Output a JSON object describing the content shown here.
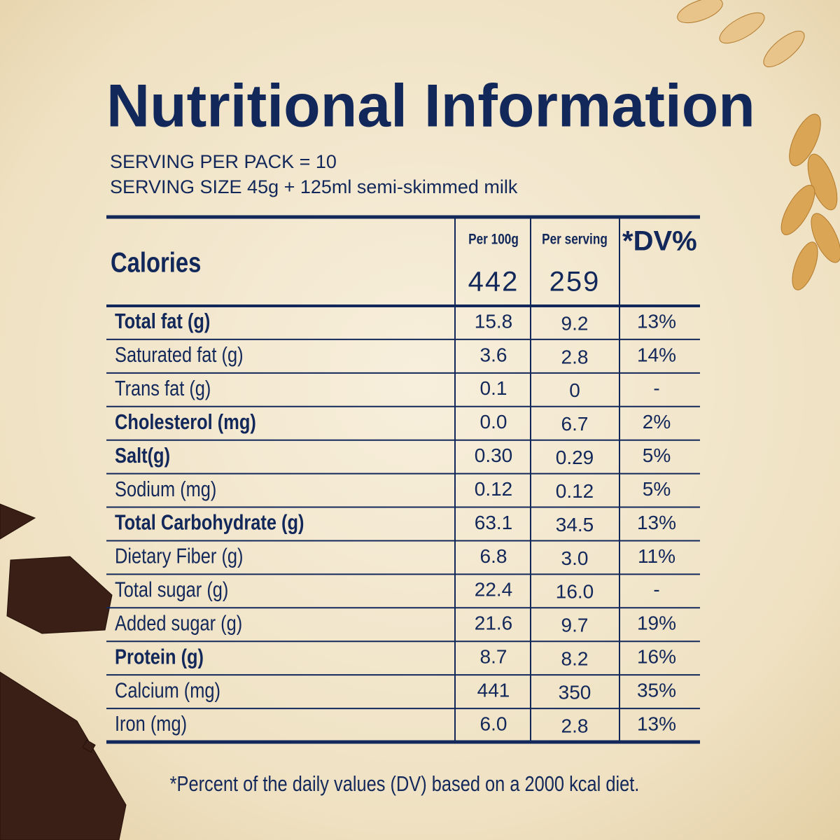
{
  "title": "Nutritional Information",
  "serving": [
    "SERVING PER PACK = 10",
    "SERVING SIZE 45g + 125ml semi-skimmed milk"
  ],
  "table": {
    "header": {
      "label": "Calories",
      "columns": [
        "Per 100g",
        "Per serving",
        "*DV%"
      ],
      "values": [
        "442",
        "259"
      ]
    },
    "rows": [
      {
        "name": "Total fat (g)",
        "bold": true,
        "values": [
          "15.8",
          "9.2",
          "13%"
        ]
      },
      {
        "name": "Saturated fat (g)",
        "bold": false,
        "values": [
          "3.6",
          "2.8",
          "14%"
        ]
      },
      {
        "name": "Trans fat (g)",
        "bold": false,
        "values": [
          "0.1",
          "0",
          "-"
        ]
      },
      {
        "name": "Cholesterol (mg)",
        "bold": true,
        "values": [
          "0.0",
          "6.7",
          "2%"
        ]
      },
      {
        "name": "Salt(g)",
        "bold": true,
        "values": [
          "0.30",
          "0.29",
          "5%"
        ]
      },
      {
        "name": "Sodium (mg)",
        "bold": false,
        "values": [
          "0.12",
          "0.12",
          "5%"
        ]
      },
      {
        "name": "Total Carbohydrate (g)",
        "bold": true,
        "values": [
          "63.1",
          "34.5",
          "13%"
        ]
      },
      {
        "name": "Dietary Fiber (g)",
        "bold": false,
        "values": [
          "6.8",
          "3.0",
          "11%"
        ]
      },
      {
        "name": "Total sugar (g)",
        "bold": false,
        "values": [
          "22.4",
          "16.0",
          "-"
        ]
      },
      {
        "name": "Added sugar (g)",
        "bold": false,
        "values": [
          "21.6",
          "9.7",
          "19%"
        ]
      },
      {
        "name": "Protein (g)",
        "bold": true,
        "values": [
          "8.7",
          "8.2",
          "16%"
        ]
      },
      {
        "name": "Calcium (mg)",
        "bold": false,
        "values": [
          "441",
          "350",
          "35%"
        ]
      },
      {
        "name": "Iron (mg)",
        "bold": false,
        "values": [
          "6.0",
          "2.8",
          "13%"
        ]
      }
    ]
  },
  "footnote": "*Percent of the daily values (DV) based on a 2000 kcal diet."
}
